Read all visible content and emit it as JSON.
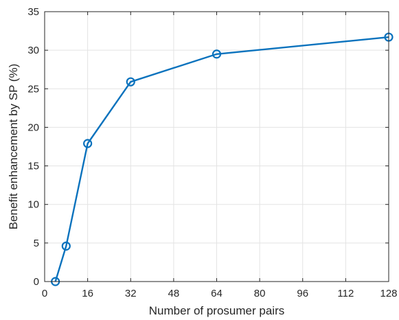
{
  "chart_data": {
    "type": "line",
    "xlabel": "Number of prosumer pairs",
    "ylabel": "Benefit enhancement by SP (%)",
    "xlim": [
      0,
      128
    ],
    "ylim": [
      0,
      35
    ],
    "xticks": [
      0,
      16,
      32,
      48,
      64,
      80,
      96,
      112,
      128
    ],
    "yticks": [
      0,
      5,
      10,
      15,
      20,
      25,
      30,
      35
    ],
    "grid": true,
    "series": [
      {
        "x": [
          4,
          8,
          16,
          32,
          64,
          128
        ],
        "y": [
          0,
          4.6,
          17.9,
          25.9,
          29.5,
          31.7
        ],
        "color": "#0a72bd",
        "marker": "circle"
      }
    ]
  }
}
